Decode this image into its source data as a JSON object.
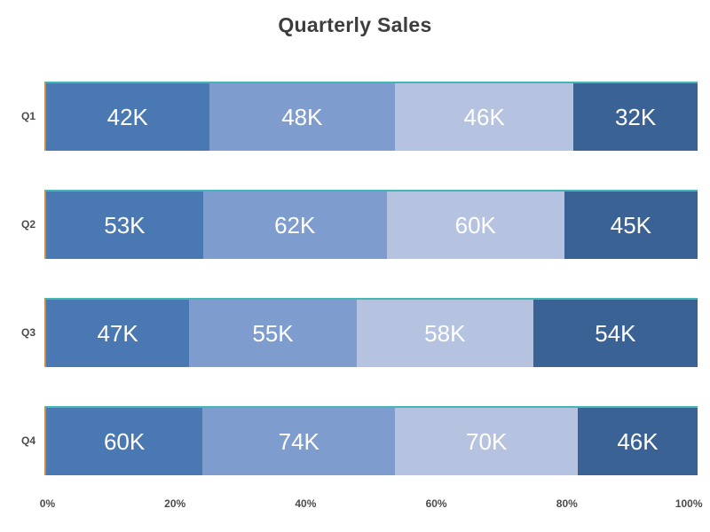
{
  "title": "Quarterly Sales",
  "colors": {
    "background": "#ffffff",
    "title_text": "#3d3d3d",
    "axis_text": "#4c4c4c",
    "value_text": "#ffffff",
    "segments": [
      "#4a78b2",
      "#7f9cce",
      "#b5c3e0",
      "#3b6295"
    ],
    "bar_top_border": "#43b7b2",
    "bar_left_border": "#cf8c3c"
  },
  "chart_data": {
    "type": "bar",
    "orientation": "horizontal",
    "stacked": true,
    "normalized": "percent",
    "title": "Quarterly Sales",
    "categories": [
      "Q1",
      "Q2",
      "Q3",
      "Q4"
    ],
    "series": [
      {
        "name": "segment-1",
        "values": [
          42,
          53,
          47,
          60
        ]
      },
      {
        "name": "segment-2",
        "values": [
          48,
          62,
          55,
          74
        ]
      },
      {
        "name": "segment-3",
        "values": [
          46,
          60,
          58,
          70
        ]
      },
      {
        "name": "segment-4",
        "values": [
          32,
          45,
          54,
          46
        ]
      }
    ],
    "value_unit": "K",
    "value_labels": [
      [
        "42K",
        "48K",
        "46K",
        "32K"
      ],
      [
        "53K",
        "62K",
        "60K",
        "45K"
      ],
      [
        "47K",
        "55K",
        "58K",
        "54K"
      ],
      [
        "60K",
        "74K",
        "70K",
        "46K"
      ]
    ],
    "x_axis": {
      "tick_labels": [
        "0%",
        "20%",
        "40%",
        "60%",
        "80%",
        "100%"
      ],
      "range": [
        0,
        100
      ],
      "grid": false
    },
    "y_axis": {
      "tick_labels": [
        "Q1",
        "Q2",
        "Q3",
        "Q4"
      ]
    },
    "legend": "none"
  }
}
